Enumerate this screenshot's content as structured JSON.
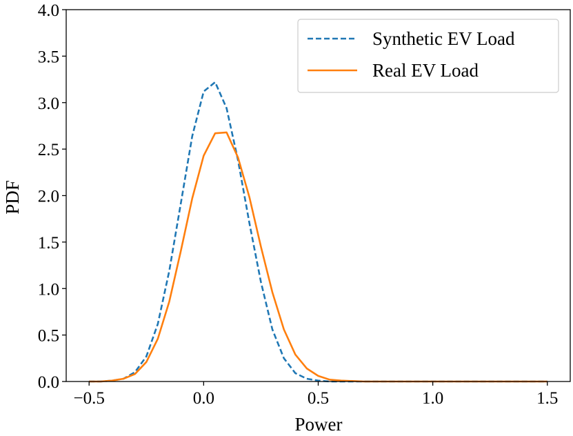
{
  "chart_data": {
    "type": "line",
    "title": "",
    "xlabel": "Power",
    "ylabel": "PDF",
    "xlim": [
      -0.6,
      1.6
    ],
    "ylim": [
      0,
      4.0
    ],
    "x_ticks": [
      -0.5,
      0.0,
      0.5,
      1.0,
      1.5
    ],
    "x_tick_labels": [
      "−0.5",
      "0.0",
      "0.5",
      "1.0",
      "1.5"
    ],
    "y_ticks": [
      0.0,
      0.5,
      1.0,
      1.5,
      2.0,
      2.5,
      3.0,
      3.5,
      4.0
    ],
    "y_tick_labels": [
      "0.0",
      "0.5",
      "1.0",
      "1.5",
      "2.0",
      "2.5",
      "3.0",
      "3.5",
      "4.0"
    ],
    "grid": false,
    "legend_position": "top-right",
    "x": [
      -0.5,
      -0.45,
      -0.4,
      -0.35,
      -0.3,
      -0.25,
      -0.2,
      -0.15,
      -0.1,
      -0.05,
      0.0,
      0.05,
      0.1,
      0.15,
      0.2,
      0.25,
      0.3,
      0.35,
      0.4,
      0.45,
      0.5,
      0.55,
      0.6,
      0.7,
      0.8,
      0.9,
      1.0,
      1.1,
      1.2,
      1.3,
      1.4,
      1.5
    ],
    "series": [
      {
        "name": "Synthetic EV Load",
        "color": "#1f77b4",
        "style": "dashed",
        "values": [
          0.0,
          0.0,
          0.01,
          0.03,
          0.1,
          0.27,
          0.62,
          1.19,
          1.91,
          2.64,
          3.12,
          3.22,
          2.94,
          2.38,
          1.7,
          1.07,
          0.56,
          0.25,
          0.09,
          0.03,
          0.01,
          0.0,
          0.0,
          0.0,
          0.0,
          0.0,
          0.0,
          0.0,
          0.0,
          0.0,
          0.0,
          0.0
        ]
      },
      {
        "name": "Real EV Load",
        "color": "#ff7f0e",
        "style": "solid",
        "values": [
          0.0,
          0.0,
          0.01,
          0.03,
          0.08,
          0.21,
          0.46,
          0.86,
          1.4,
          1.97,
          2.43,
          2.67,
          2.68,
          2.41,
          1.98,
          1.45,
          0.96,
          0.56,
          0.29,
          0.14,
          0.06,
          0.02,
          0.01,
          0.0,
          0.0,
          0.0,
          0.0,
          0.0,
          0.0,
          0.0,
          0.0,
          0.0
        ]
      }
    ]
  }
}
